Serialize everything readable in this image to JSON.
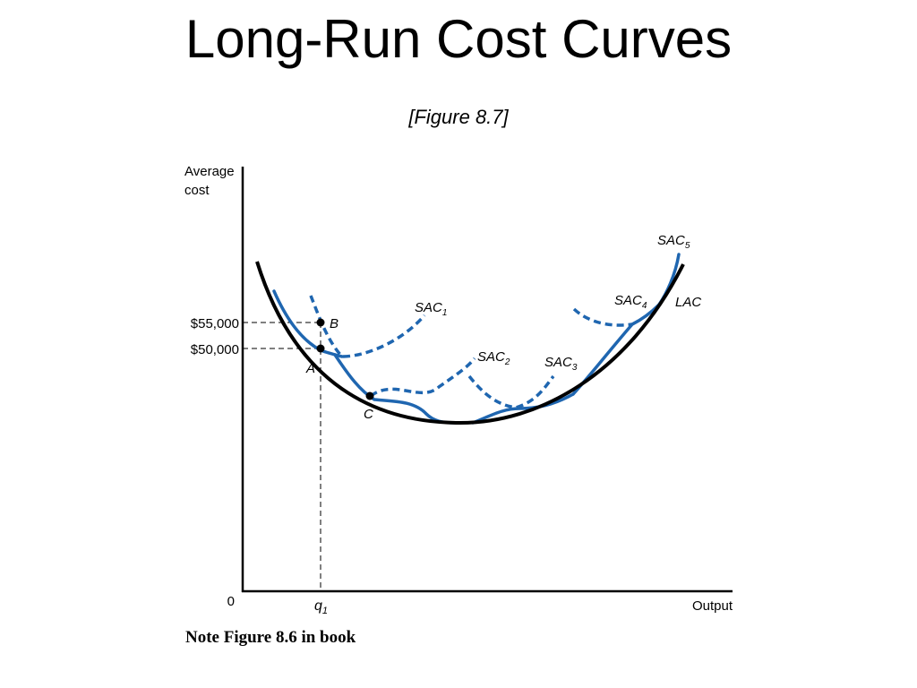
{
  "title": "Long-Run Cost Curves",
  "subtitle": "[Figure 8.7]",
  "note": "Note Figure 8.6 in book",
  "colors": {
    "sac": "#1f66b0",
    "lac": "#000000",
    "axis": "#000000"
  },
  "axes": {
    "y_label_line1": "Average",
    "y_label_line2": "cost",
    "x_label": "Output",
    "origin": "0",
    "y_tick_high": "$55,000",
    "y_tick_low": "$50,000",
    "x_tick_q": "q",
    "x_tick_q_sub": "1"
  },
  "curves": {
    "lac": "LAC",
    "sac": [
      {
        "base": "SAC",
        "sub": "1"
      },
      {
        "base": "SAC",
        "sub": "2"
      },
      {
        "base": "SAC",
        "sub": "3"
      },
      {
        "base": "SAC",
        "sub": "4"
      },
      {
        "base": "SAC",
        "sub": "5"
      }
    ]
  },
  "points": {
    "a": "A",
    "b": "B",
    "c": "C"
  }
}
